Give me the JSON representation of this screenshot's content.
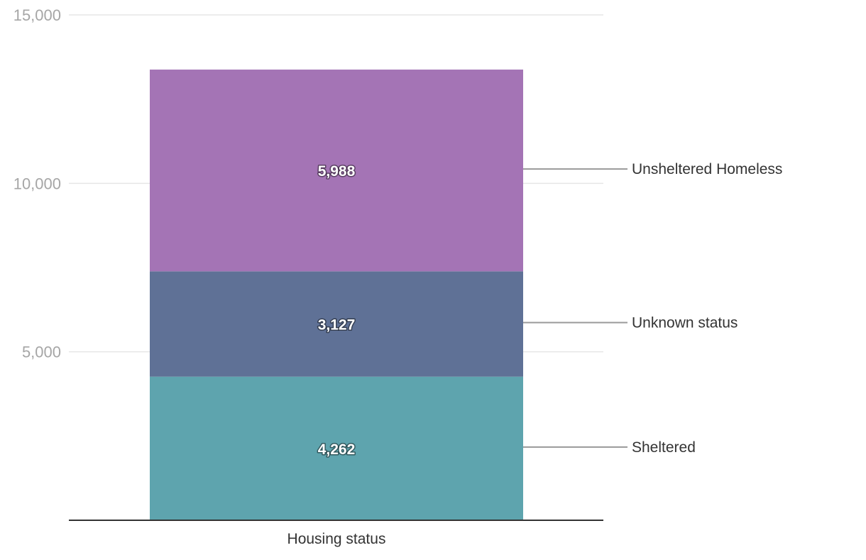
{
  "chart_data": {
    "type": "bar",
    "stacked": true,
    "categories": [
      "Housing status"
    ],
    "series": [
      {
        "name": "Sheltered",
        "values": [
          4262
        ],
        "color": "#5ea4ae"
      },
      {
        "name": "Unknown status",
        "values": [
          3127
        ],
        "color": "#5f7196"
      },
      {
        "name": "Unsheltered Homeless",
        "values": [
          5988
        ],
        "color": "#a474b5"
      }
    ],
    "ylim": [
      0,
      15000
    ],
    "yticks": [
      5000,
      10000,
      15000
    ],
    "ytick_labels": [
      "5,000",
      "10,000",
      "15,000"
    ],
    "value_labels": [
      "4,262",
      "3,127",
      "5,988"
    ],
    "xlabel": "",
    "ylabel": "",
    "grid": true,
    "legend_placement": "right, direct labels"
  },
  "colors": {
    "grid": "#e6e6e6",
    "axis": "#333333",
    "leader": "#999999"
  }
}
